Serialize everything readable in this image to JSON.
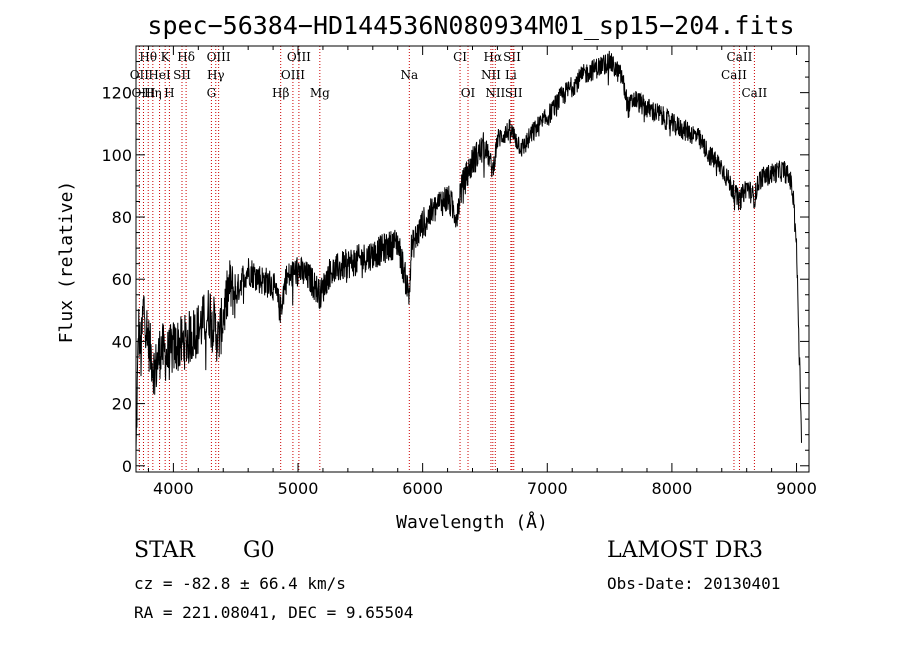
{
  "chart_data": {
    "type": "line",
    "title": "spec−56384−HD144536N080934M01_sp15−204.fits",
    "xlabel": "Wavelength (Å)",
    "ylabel": "Flux (relative)",
    "xlim": [
      3700,
      9100
    ],
    "ylim": [
      -2,
      135
    ],
    "xticks": [
      4000,
      5000,
      6000,
      7000,
      8000,
      9000
    ],
    "yticks": [
      0,
      20,
      40,
      60,
      80,
      100,
      120
    ],
    "line_color": "#000000",
    "marker_color": "#cc0000",
    "spectrum_anchors": [
      [
        3700,
        2
      ],
      [
        3720,
        45
      ],
      [
        3740,
        35
      ],
      [
        3760,
        52
      ],
      [
        3800,
        40
      ],
      [
        3850,
        30
      ],
      [
        3900,
        38
      ],
      [
        3950,
        35
      ],
      [
        4000,
        38
      ],
      [
        4100,
        40
      ],
      [
        4200,
        44
      ],
      [
        4300,
        50
      ],
      [
        4360,
        40
      ],
      [
        4400,
        48
      ],
      [
        4450,
        58
      ],
      [
        4500,
        55
      ],
      [
        4550,
        60
      ],
      [
        4600,
        63
      ],
      [
        4700,
        60
      ],
      [
        4800,
        58
      ],
      [
        4860,
        50
      ],
      [
        4900,
        60
      ],
      [
        5000,
        63
      ],
      [
        5100,
        60
      ],
      [
        5180,
        55
      ],
      [
        5250,
        62
      ],
      [
        5400,
        65
      ],
      [
        5600,
        68
      ],
      [
        5800,
        72
      ],
      [
        5890,
        55
      ],
      [
        5910,
        70
      ],
      [
        6000,
        78
      ],
      [
        6150,
        85
      ],
      [
        6200,
        86
      ],
      [
        6280,
        80
      ],
      [
        6300,
        88
      ],
      [
        6400,
        98
      ],
      [
        6500,
        103
      ],
      [
        6563,
        95
      ],
      [
        6600,
        105
      ],
      [
        6700,
        108
      ],
      [
        6800,
        102
      ],
      [
        6900,
        108
      ],
      [
        7000,
        112
      ],
      [
        7100,
        118
      ],
      [
        7200,
        122
      ],
      [
        7300,
        126
      ],
      [
        7400,
        128
      ],
      [
        7500,
        130
      ],
      [
        7600,
        125
      ],
      [
        7650,
        115
      ],
      [
        7700,
        118
      ],
      [
        7800,
        115
      ],
      [
        7900,
        113
      ],
      [
        8000,
        110
      ],
      [
        8100,
        108
      ],
      [
        8200,
        106
      ],
      [
        8300,
        100
      ],
      [
        8400,
        96
      ],
      [
        8450,
        92
      ],
      [
        8500,
        88
      ],
      [
        8542,
        85
      ],
      [
        8600,
        90
      ],
      [
        8662,
        86
      ],
      [
        8700,
        92
      ],
      [
        8800,
        94
      ],
      [
        8900,
        95
      ],
      [
        8950,
        92
      ],
      [
        8980,
        85
      ],
      [
        9000,
        70
      ],
      [
        9020,
        40
      ],
      [
        9040,
        10
      ]
    ],
    "line_markers": [
      {
        "label": "Hθ",
        "wl": 3798,
        "row": 0
      },
      {
        "label": "K",
        "wl": 3934,
        "row": 0
      },
      {
        "label": "Hδ",
        "wl": 4102,
        "row": 0
      },
      {
        "label": "OIII",
        "wl": 4363,
        "row": 0
      },
      {
        "label": "OIII",
        "wl": 5007,
        "row": 0
      },
      {
        "label": "CI",
        "wl": 6300,
        "row": 0
      },
      {
        "label": "Hα",
        "wl": 6563,
        "row": 0
      },
      {
        "label": "SII",
        "wl": 6717,
        "row": 0
      },
      {
        "label": "CaII",
        "wl": 8542,
        "row": 0
      },
      {
        "label": "OII",
        "wl": 3727,
        "row": 1
      },
      {
        "label": "HeI",
        "wl": 3889,
        "row": 1
      },
      {
        "label": "SII",
        "wl": 4069,
        "row": 1
      },
      {
        "label": "Hγ",
        "wl": 4340,
        "row": 1
      },
      {
        "label": "OIII",
        "wl": 4959,
        "row": 1
      },
      {
        "label": "Na",
        "wl": 5893,
        "row": 1
      },
      {
        "label": "NII",
        "wl": 6548,
        "row": 1
      },
      {
        "label": "Li",
        "wl": 6708,
        "row": 1
      },
      {
        "label": "CaII",
        "wl": 8498,
        "row": 1
      },
      {
        "label": "OIII",
        "wl": 3760,
        "row": 2
      },
      {
        "label": "Hη",
        "wl": 3835,
        "row": 2
      },
      {
        "label": "H",
        "wl": 3968,
        "row": 2
      },
      {
        "label": "G",
        "wl": 4305,
        "row": 2
      },
      {
        "label": "Hβ",
        "wl": 4861,
        "row": 2
      },
      {
        "label": "Mg",
        "wl": 5175,
        "row": 2
      },
      {
        "label": "OI",
        "wl": 6364,
        "row": 2
      },
      {
        "label": "NII",
        "wl": 6583,
        "row": 2
      },
      {
        "label": "SII",
        "wl": 6731,
        "row": 2
      },
      {
        "label": "CaII",
        "wl": 8662,
        "row": 2
      }
    ]
  },
  "info": {
    "object_class": "STAR",
    "subclass": "G0",
    "survey": "LAMOST DR3",
    "redshift_text": "cz = -82.8 ± 66.4 km/s",
    "obs_date": "Obs-Date: 20130401",
    "coords": "RA = 221.08041, DEC =   9.65504"
  }
}
